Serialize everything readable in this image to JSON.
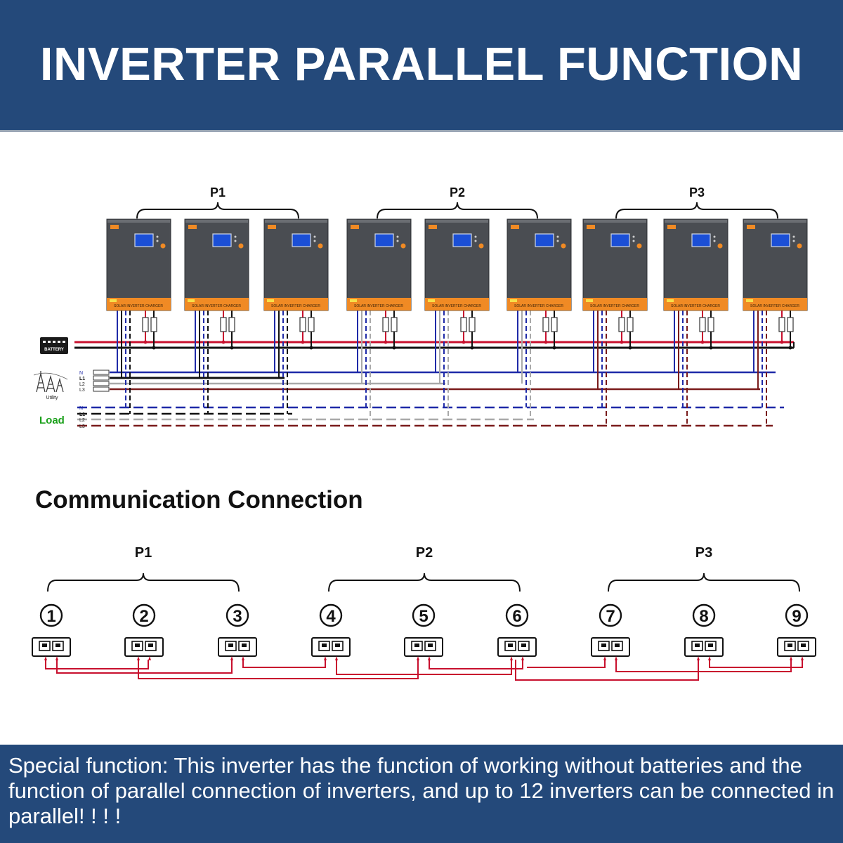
{
  "header": {
    "title": "INVERTER PARALLEL FUNCTION"
  },
  "power_diagram": {
    "groups": [
      "P1",
      "P2",
      "P3"
    ],
    "inverter_label": "SOLAR INVERTER CHARGER",
    "battery_label": "BATTERY",
    "utility_label": "Utility",
    "load_label": "Load",
    "utility_lines": [
      "N",
      "L1",
      "L2",
      "L3"
    ],
    "load_lines": [
      "N",
      "L1",
      "L2",
      "L3"
    ],
    "colors": {
      "N": "#1f2aa8",
      "L1": "#111111",
      "L2": "#a9a9a9",
      "L3": "#7a1b1b",
      "battery_pos": "#c8102e",
      "battery_neg": "#111111",
      "inverter_body": "#4a4d52",
      "inverter_band": "#f08a24"
    }
  },
  "communication": {
    "title": "Communication Connection",
    "groups": [
      "P1",
      "P2",
      "P3"
    ],
    "units": [
      "1",
      "2",
      "3",
      "4",
      "5",
      "6",
      "7",
      "8",
      "9"
    ],
    "cable_color": "#c8102e"
  },
  "footer": {
    "text": "Special function: This inverter has the function of working without batteries and the function of parallel connection of inverters, and up to 12 inverters can be connected in parallel! ! ! !"
  }
}
